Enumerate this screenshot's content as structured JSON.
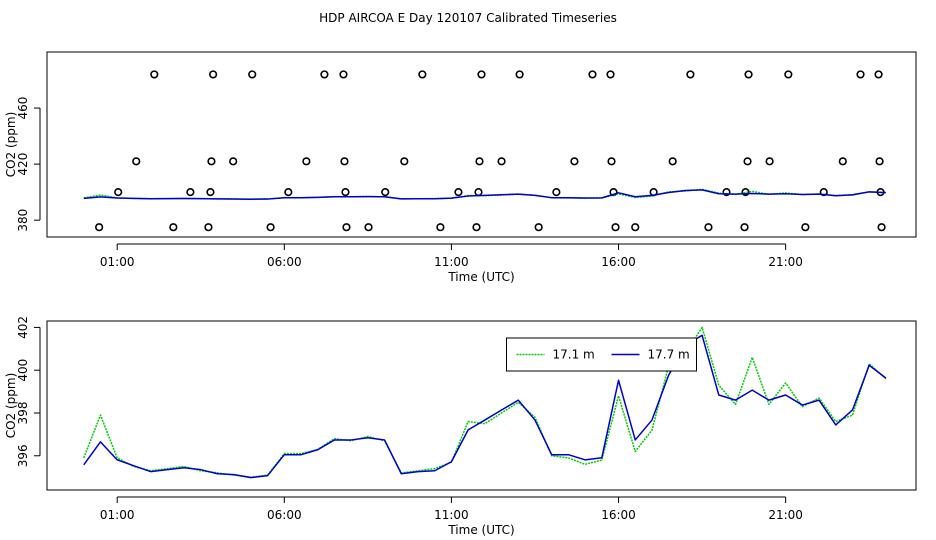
{
  "chart_data": [
    {
      "type": "line",
      "title": "HDP AIRCOA E  Day 120107  Calibrated Timeseries",
      "xlabel": "Time (UTC)",
      "ylabel": "CO2 (ppm)",
      "xlim": [
        -1.1,
        24.9
      ],
      "ylim": [
        368,
        500
      ],
      "xticks": [
        {
          "value": 1,
          "label": "01:00"
        },
        {
          "value": 6,
          "label": "06:00"
        },
        {
          "value": 11,
          "label": "11:00"
        },
        {
          "value": 16,
          "label": "16:00"
        },
        {
          "value": 21,
          "label": "21:00"
        }
      ],
      "yticks": [
        380,
        420,
        460
      ],
      "series": [
        {
          "mode": "markers",
          "color": "#000000",
          "x": [
            2.11,
            3.87,
            5.04,
            7.2,
            7.77,
            10.13,
            11.9,
            13.04,
            15.22,
            15.76,
            18.15,
            19.89,
            21.08,
            23.24,
            23.78,
            1.57,
            3.82,
            4.47,
            6.66,
            7.8,
            9.59,
            11.84,
            12.5,
            14.68,
            15.79,
            17.62,
            19.86,
            20.52,
            22.71,
            23.81,
            1.03,
            3.19,
            3.79,
            6.12,
            7.83,
            9.02,
            11.21,
            11.81,
            14.14,
            15.85,
            17.05,
            19.23,
            19.8,
            22.14,
            23.84,
            0.46,
            2.68,
            3.73,
            5.59,
            7.86,
            8.52,
            10.67,
            11.75,
            13.61,
            15.91,
            16.5,
            18.69,
            19.77,
            21.59,
            23.87
          ],
          "values": [
            484,
            484,
            484,
            484,
            484,
            484,
            484,
            484,
            484,
            484,
            484,
            484,
            484,
            484,
            484,
            422,
            422,
            422,
            422,
            422,
            422,
            422,
            422,
            422,
            422,
            422,
            422,
            422,
            422,
            422,
            400,
            400,
            400,
            400,
            400,
            400,
            400,
            400,
            400,
            400,
            400,
            400,
            400,
            400,
            400,
            375,
            375,
            375,
            375,
            375,
            375,
            375,
            375,
            375,
            375,
            375,
            375,
            375,
            375,
            375
          ]
        },
        {
          "mode": "lines",
          "color": "#00cc00",
          "dash": true,
          "x": [
            0,
            0.5,
            1,
            1.5,
            2,
            2.5,
            3,
            3.5,
            4,
            4.5,
            5,
            5.5,
            6,
            6.5,
            7,
            7.5,
            8,
            8.5,
            9,
            9.5,
            10,
            10.5,
            11,
            11.5,
            12,
            12.5,
            13,
            13.5,
            14,
            14.5,
            15,
            15.5,
            16,
            16.5,
            17,
            17.5,
            18,
            18.5,
            19,
            19.5,
            20,
            20.5,
            21,
            21.5,
            22,
            22.5,
            23,
            23.5,
            24
          ],
          "values": [
            395.9,
            397.9,
            395.9,
            395.5,
            395.3,
            395.4,
            395.5,
            395.3,
            395.2,
            395.1,
            395.0,
            395.1,
            396.1,
            396.1,
            396.3,
            396.8,
            396.7,
            396.9,
            396.7,
            395.2,
            395.3,
            395.4,
            395.7,
            397.6,
            397.5,
            398.0,
            398.5,
            397.8,
            396.0,
            395.9,
            395.6,
            395.8,
            398.8,
            396.2,
            397.2,
            400.2,
            400.8,
            402.0,
            399.3,
            398.4,
            400.6,
            398.4,
            399.4,
            398.3,
            398.7,
            397.6,
            397.9,
            400.3,
            399.6
          ]
        },
        {
          "mode": "lines",
          "color": "#0000cc",
          "x": [
            0,
            0.5,
            1,
            1.5,
            2,
            2.5,
            3,
            3.5,
            4,
            4.5,
            5,
            5.5,
            6,
            6.5,
            7,
            7.5,
            8,
            8.5,
            9,
            9.5,
            10,
            10.5,
            11,
            11.5,
            12,
            12.5,
            13,
            13.5,
            14,
            14.5,
            15,
            15.5,
            16,
            16.5,
            17,
            17.5,
            18,
            18.5,
            19,
            19.5,
            20,
            20.5,
            21,
            21.5,
            22,
            22.5,
            23,
            23.5,
            24
          ],
          "values": [
            395.58,
            396.65,
            395.81,
            395.53,
            395.26,
            395.35,
            395.44,
            395.35,
            395.16,
            395.12,
            394.98,
            395.07,
            396.05,
            396.05,
            396.28,
            396.74,
            396.74,
            396.84,
            396.74,
            395.16,
            395.26,
            395.3,
            395.72,
            397.21,
            397.67,
            398.14,
            398.6,
            397.67,
            396.05,
            396.05,
            395.81,
            395.91,
            399.53,
            396.74,
            397.67,
            399.77,
            401.16,
            401.63,
            398.84,
            398.6,
            399.07,
            398.6,
            398.84,
            398.37,
            398.6,
            397.44,
            398.14,
            400.23,
            399.63
          ]
        }
      ]
    },
    {
      "type": "line",
      "xlabel": "Time (UTC)",
      "ylabel": "CO2 (ppm)",
      "xlim": [
        -1.1,
        24.9
      ],
      "ylim": [
        394.4,
        402.3
      ],
      "xticks": [
        {
          "value": 1,
          "label": "01:00"
        },
        {
          "value": 6,
          "label": "06:00"
        },
        {
          "value": 11,
          "label": "11:00"
        },
        {
          "value": 16,
          "label": "16:00"
        },
        {
          "value": 21,
          "label": "21:00"
        }
      ],
      "yticks": [
        396,
        398,
        400,
        402
      ],
      "legend": "top",
      "series": [
        {
          "name": "17.1 m",
          "mode": "lines",
          "color": "#00cc00",
          "dash": true,
          "x": [
            0,
            0.5,
            1,
            1.5,
            2,
            2.5,
            3,
            3.5,
            4,
            4.5,
            5,
            5.5,
            6,
            6.5,
            7,
            7.5,
            8,
            8.5,
            9,
            9.5,
            10,
            10.5,
            11,
            11.5,
            12,
            12.5,
            13,
            13.5,
            14,
            14.5,
            15,
            15.5,
            16,
            16.5,
            17,
            17.5,
            18,
            18.5,
            19,
            19.5,
            20,
            20.5,
            21,
            21.5,
            22,
            22.5,
            23,
            23.5,
            24
          ],
          "values": [
            395.9,
            397.9,
            395.9,
            395.5,
            395.3,
            395.4,
            395.5,
            395.3,
            395.2,
            395.1,
            395.0,
            395.1,
            396.1,
            396.1,
            396.3,
            396.8,
            396.7,
            396.9,
            396.7,
            395.2,
            395.3,
            395.4,
            395.7,
            397.6,
            397.5,
            398.0,
            398.5,
            397.8,
            396.0,
            395.9,
            395.6,
            395.8,
            398.8,
            396.2,
            397.2,
            400.2,
            400.8,
            402.0,
            399.3,
            398.4,
            400.6,
            398.4,
            399.4,
            398.3,
            398.7,
            397.6,
            397.9,
            400.3,
            399.6
          ]
        },
        {
          "name": "17.7 m",
          "mode": "lines",
          "color": "#0000cc",
          "x": [
            0,
            0.5,
            1,
            1.5,
            2,
            2.5,
            3,
            3.5,
            4,
            4.5,
            5,
            5.5,
            6,
            6.5,
            7,
            7.5,
            8,
            8.5,
            9,
            9.5,
            10,
            10.5,
            11,
            11.5,
            12,
            12.5,
            13,
            13.5,
            14,
            14.5,
            15,
            15.5,
            16,
            16.5,
            17,
            17.5,
            18,
            18.5,
            19,
            19.5,
            20,
            20.5,
            21,
            21.5,
            22,
            22.5,
            23,
            23.5,
            24
          ],
          "values": [
            395.58,
            396.65,
            395.81,
            395.53,
            395.26,
            395.35,
            395.44,
            395.35,
            395.16,
            395.12,
            394.98,
            395.07,
            396.05,
            396.05,
            396.28,
            396.74,
            396.74,
            396.84,
            396.74,
            395.16,
            395.26,
            395.3,
            395.72,
            397.21,
            397.67,
            398.14,
            398.6,
            397.67,
            396.05,
            396.05,
            395.81,
            395.91,
            399.53,
            396.74,
            397.67,
            399.77,
            401.16,
            401.63,
            398.84,
            398.6,
            399.07,
            398.6,
            398.84,
            398.37,
            398.6,
            397.44,
            398.14,
            400.23,
            399.63
          ]
        }
      ]
    }
  ]
}
